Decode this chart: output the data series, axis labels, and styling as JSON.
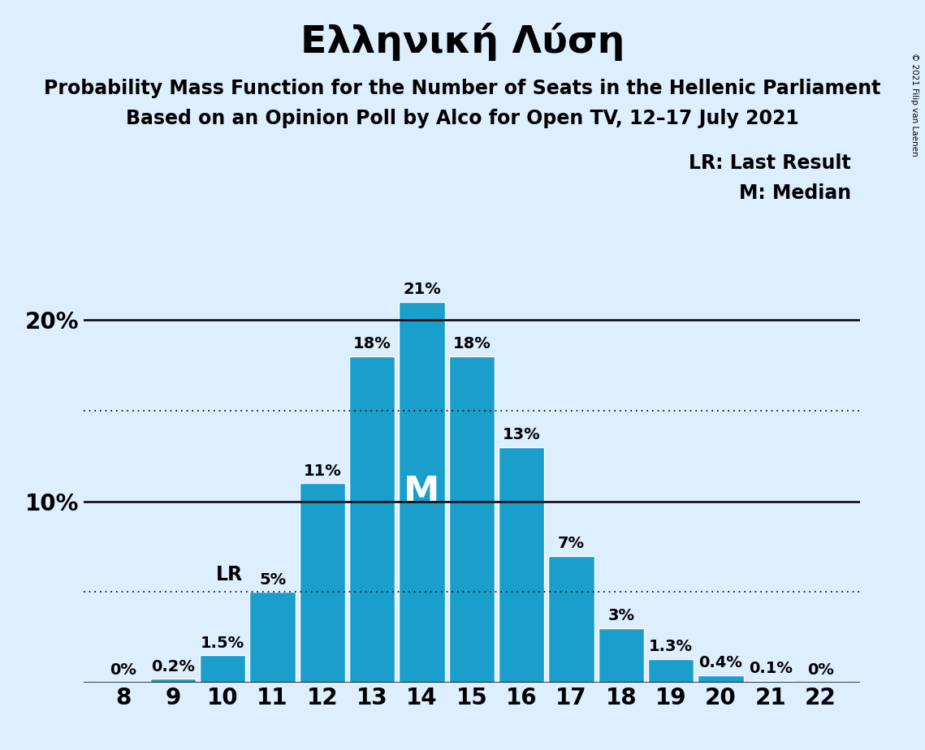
{
  "title": "Ελληνική Λύση",
  "subtitle1": "Probability Mass Function for the Number of Seats in the Hellenic Parliament",
  "subtitle2": "Based on an Opinion Poll by Alco for Open TV, 12–17 July 2021",
  "copyright": "© 2021 Filip van Laenen",
  "seats": [
    8,
    9,
    10,
    11,
    12,
    13,
    14,
    15,
    16,
    17,
    18,
    19,
    20,
    21,
    22
  ],
  "probabilities": [
    0.0,
    0.2,
    1.5,
    5.0,
    11.0,
    18.0,
    21.0,
    18.0,
    13.0,
    7.0,
    3.0,
    1.3,
    0.4,
    0.1,
    0.0
  ],
  "bar_color": "#1a9fcc",
  "background_color": "#ddeeff",
  "last_result_seat": 11,
  "median_seat": 14,
  "dotted_lines": [
    5.0,
    15.0
  ],
  "solid_lines": [
    0,
    10,
    20
  ],
  "legend_lr": "LR: Last Result",
  "legend_m": "M: Median",
  "bar_label_fontsize": 14,
  "title_fontsize": 34,
  "subtitle_fontsize": 17,
  "axis_tick_fontsize": 20,
  "ytick_labels": [
    "",
    "10%",
    "20%"
  ],
  "ylim": [
    0,
    24
  ],
  "xlim": [
    7.2,
    22.8
  ],
  "bar_width": 0.92
}
